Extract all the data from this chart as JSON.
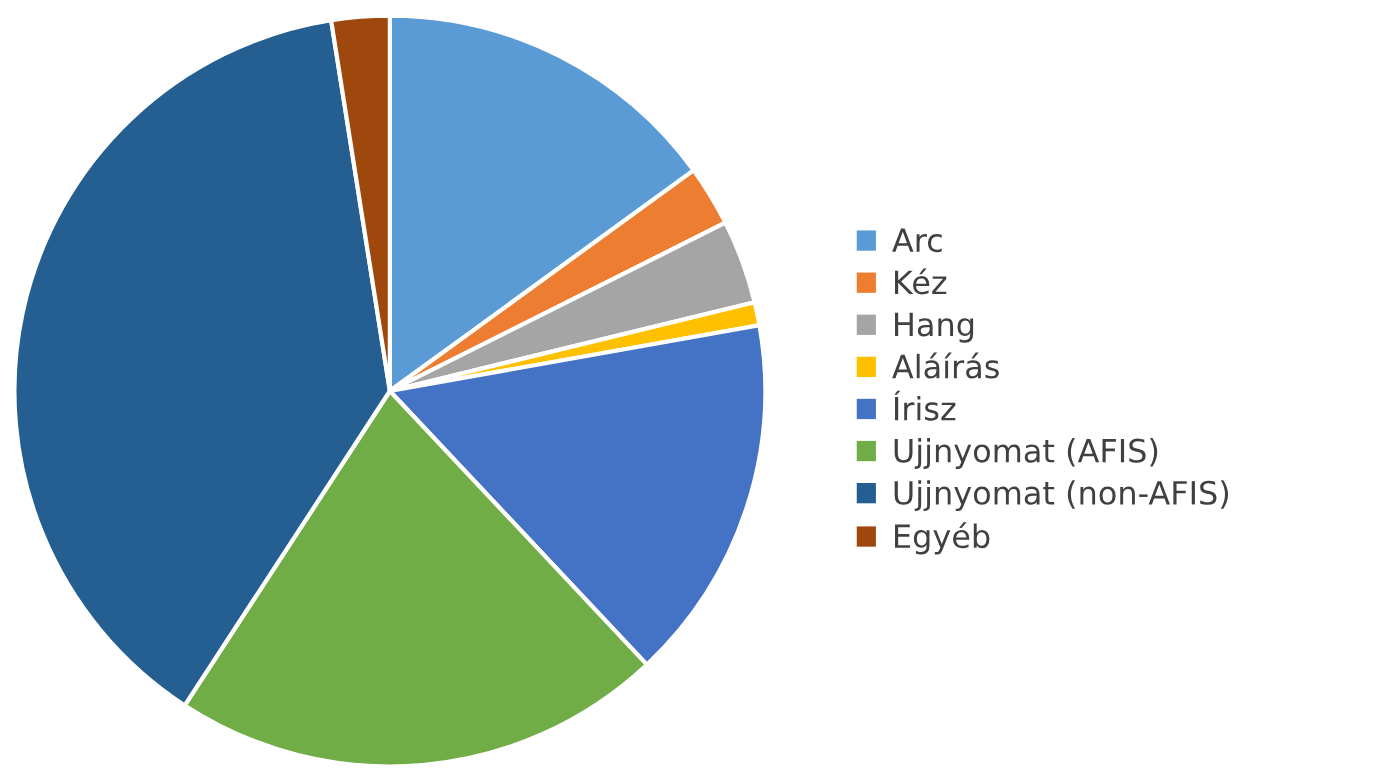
{
  "chart_data": {
    "type": "pie",
    "categories": [
      "Arc",
      "Kéz",
      "Hang",
      "Aláírás",
      "Írisz",
      "Ujjnyomat (AFIS)",
      "Ujjnyomat (non-AFIS)",
      "Egyéb"
    ],
    "values": [
      15,
      2.6,
      3.6,
      1,
      15.8,
      21.2,
      38.3,
      2.5
    ],
    "colors": [
      "#5b9bd5",
      "#ed7d31",
      "#a5a5a5",
      "#ffc000",
      "#4472c4",
      "#70ad47",
      "#255e91",
      "#9e480e"
    ],
    "legend": "right"
  }
}
